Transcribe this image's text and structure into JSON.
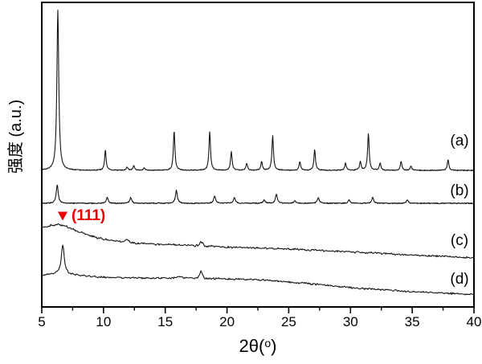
{
  "figure": {
    "background": "#ffffff"
  },
  "chart_data": {
    "type": "line",
    "title": "",
    "ylabel": "强度 (a.u.)",
    "xlabel": "2θ(°)",
    "xlabel_parts": {
      "pre": "2θ(",
      "sup": "o",
      "post": ")"
    },
    "xlim": [
      5,
      40
    ],
    "grid": false,
    "x_major_ticks": [
      5,
      10,
      15,
      20,
      25,
      30,
      35,
      40
    ],
    "x_minor_ticks": [
      7.5,
      12.5,
      17.5,
      22.5,
      27.5,
      32.5,
      37.5
    ],
    "colors": {
      "curve": "#141414",
      "frame": "#000000",
      "annotation": "#ee0000",
      "background": "#ffffff"
    },
    "annotation": {
      "marker": "triangle-down",
      "label": "(111)",
      "two_theta": 6.65,
      "color": "#ee0000"
    },
    "series": [
      {
        "name": "(a)",
        "style": "sharp",
        "baseline": 212,
        "noise": 0.5,
        "peak_width": 1.15,
        "peaks": [
          [
            6.3,
            199,
            1.4
          ],
          [
            10.15,
            25
          ],
          [
            11.9,
            4
          ],
          [
            12.45,
            6
          ],
          [
            13.3,
            3
          ],
          [
            15.72,
            49
          ],
          [
            18.6,
            48
          ],
          [
            20.35,
            23
          ],
          [
            21.6,
            9
          ],
          [
            22.8,
            11
          ],
          [
            23.7,
            43
          ],
          [
            25.9,
            11
          ],
          [
            27.1,
            26
          ],
          [
            29.6,
            9
          ],
          [
            30.8,
            11
          ],
          [
            31.45,
            46
          ],
          [
            32.4,
            9
          ],
          [
            34.1,
            11
          ],
          [
            34.9,
            5
          ],
          [
            37.9,
            13
          ]
        ]
      },
      {
        "name": "(b)",
        "style": "sharp",
        "baseline": 253,
        "noise": 0.6,
        "peak_width": 1.45,
        "peaks": [
          [
            6.25,
            23
          ],
          [
            10.3,
            7
          ],
          [
            12.2,
            7
          ],
          [
            15.9,
            16
          ],
          [
            19.0,
            9
          ],
          [
            20.6,
            7
          ],
          [
            23.0,
            4
          ],
          [
            24.0,
            11
          ],
          [
            25.5,
            3
          ],
          [
            27.4,
            7
          ],
          [
            29.9,
            4
          ],
          [
            31.8,
            7
          ],
          [
            34.6,
            4
          ]
        ]
      },
      {
        "name": "(c)",
        "style": "broad",
        "noise": 1.4,
        "anchors": [
          [
            5,
            283
          ],
          [
            5.6,
            281
          ],
          [
            6.3,
            279
          ],
          [
            7,
            282
          ],
          [
            7.6,
            286
          ],
          [
            8.5,
            291
          ],
          [
            9.5,
            296
          ],
          [
            11,
            300
          ],
          [
            12.5,
            302.5
          ],
          [
            14,
            304
          ],
          [
            16,
            305
          ],
          [
            18,
            306
          ],
          [
            20,
            307.5
          ],
          [
            22,
            308.5
          ],
          [
            24,
            309.5
          ],
          [
            26,
            310.5
          ],
          [
            28,
            312
          ],
          [
            30,
            313.5
          ],
          [
            32,
            315
          ],
          [
            34,
            316.5
          ],
          [
            36,
            318
          ],
          [
            38,
            319.5
          ],
          [
            40,
            321
          ]
        ],
        "bumps": [
          [
            11.9,
            3,
            0.25
          ],
          [
            17.9,
            5,
            0.2
          ]
        ]
      },
      {
        "name": "(d)",
        "style": "broad",
        "noise": 1.4,
        "anchors": [
          [
            5,
            342
          ],
          [
            5.6,
            341
          ],
          [
            6.1,
            340
          ],
          [
            6.7,
            340
          ],
          [
            7.4,
            341
          ],
          [
            8.2,
            343
          ],
          [
            9,
            344
          ],
          [
            10,
            345
          ],
          [
            11.5,
            345.5
          ],
          [
            13,
            346
          ],
          [
            15,
            346.3
          ],
          [
            17,
            345.8
          ],
          [
            19,
            346.5
          ],
          [
            21,
            347.5
          ],
          [
            23,
            348.5
          ],
          [
            25,
            351
          ],
          [
            27,
            353.5
          ],
          [
            29,
            356.5
          ],
          [
            31,
            359
          ],
          [
            33,
            361
          ],
          [
            35,
            363
          ],
          [
            37,
            364.5
          ],
          [
            40,
            366.5
          ]
        ],
        "bumps": [
          [
            6.7,
            26,
            0.13
          ],
          [
            6.7,
            10,
            0.38
          ],
          [
            17.9,
            8,
            0.18
          ],
          [
            16.2,
            2,
            0.3
          ]
        ]
      }
    ]
  }
}
